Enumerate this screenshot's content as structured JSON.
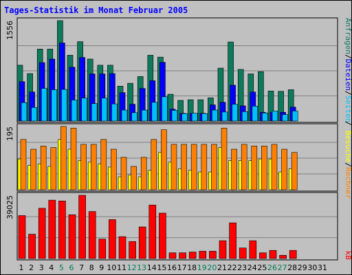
{
  "title": "Tages-Statistik im Monat Februar 2005",
  "colors": {
    "background": "#c0c0c0",
    "panel": "#c0c0c0",
    "grid": "#808080",
    "hits": "#0e7a5c",
    "files": "#0000ff",
    "pages": "#00c0ff",
    "visits": "#ff8000",
    "sites": "#ffff00",
    "kbytes": "#ff0000",
    "weekend": "#007b55",
    "weekday": "#000000",
    "title": "#0000ff",
    "legend_separator": "#000000"
  },
  "legend": {
    "top": [
      {
        "text": "Anfragen",
        "color": "#0e7a5c"
      },
      {
        "text": "Dateien",
        "color": "#0000ff"
      },
      {
        "text": "Seiten",
        "color": "#00c0ff"
      }
    ],
    "middle": [
      {
        "text": "Besuche",
        "color": "#ffff00"
      },
      {
        "text": "Rechner",
        "color": "#ff8000"
      }
    ],
    "bottom": [
      {
        "text": "kB",
        "color": "#ff0000"
      }
    ],
    "separator": "/"
  },
  "chart_data": [
    {
      "type": "bar",
      "ymax_label": "1556",
      "ylim": [
        0,
        1556
      ],
      "categories": [
        "1",
        "2",
        "3",
        "4",
        "5",
        "6",
        "7",
        "8",
        "9",
        "10",
        "11",
        "12",
        "13",
        "14",
        "15",
        "16",
        "17",
        "18",
        "19",
        "20",
        "21",
        "22",
        "23",
        "24",
        "25",
        "26",
        "27",
        "28",
        "29",
        "30",
        "31"
      ],
      "weekend_days": [
        "5",
        "6",
        "12",
        "13",
        "19",
        "20",
        "26",
        "27"
      ],
      "series": [
        {
          "name": "Anfragen",
          "values": [
            865,
            735,
            1115,
            1115,
            1556,
            1020,
            1230,
            960,
            865,
            865,
            540,
            585,
            690,
            1020,
            990,
            415,
            320,
            330,
            330,
            360,
            820,
            1225,
            800,
            730,
            765,
            465,
            460,
            485,
            null,
            null,
            null
          ]
        },
        {
          "name": "Dateien",
          "values": [
            610,
            450,
            905,
            960,
            1210,
            835,
            985,
            730,
            730,
            735,
            440,
            260,
            505,
            625,
            910,
            185,
            120,
            120,
            120,
            250,
            290,
            555,
            235,
            450,
            135,
            135,
            135,
            215,
            null,
            null,
            null
          ]
        },
        {
          "name": "Seiten",
          "values": [
            285,
            210,
            505,
            485,
            490,
            325,
            355,
            270,
            355,
            265,
            170,
            130,
            170,
            290,
            375,
            165,
            115,
            120,
            115,
            170,
            140,
            260,
            145,
            230,
            125,
            155,
            100,
            155,
            null,
            null,
            null
          ]
        }
      ]
    },
    {
      "type": "bar",
      "ymax_label": "195",
      "ylim": [
        0,
        195
      ],
      "categories": [
        "1",
        "2",
        "3",
        "4",
        "5",
        "6",
        "7",
        "8",
        "9",
        "10",
        "11",
        "12",
        "13",
        "14",
        "15",
        "16",
        "17",
        "18",
        "19",
        "20",
        "21",
        "22",
        "23",
        "24",
        "25",
        "26",
        "27",
        "28",
        "29",
        "30",
        "31"
      ],
      "series": [
        {
          "name": "Rechner",
          "values": [
            155,
            125,
            135,
            130,
            195,
            190,
            140,
            140,
            155,
            125,
            100,
            72,
            100,
            155,
            185,
            140,
            140,
            140,
            140,
            140,
            190,
            125,
            140,
            135,
            135,
            140,
            125,
            115,
            null,
            null,
            null
          ]
        },
        {
          "name": "Besuche",
          "values": [
            95,
            75,
            80,
            72,
            155,
            125,
            90,
            85,
            80,
            70,
            40,
            45,
            40,
            60,
            115,
            85,
            65,
            60,
            55,
            55,
            130,
            90,
            90,
            90,
            95,
            95,
            55,
            65,
            null,
            null,
            null
          ]
        }
      ]
    },
    {
      "type": "bar",
      "ymax_label": "39025",
      "ylim": [
        0,
        39025
      ],
      "categories": [
        "1",
        "2",
        "3",
        "4",
        "5",
        "6",
        "7",
        "8",
        "9",
        "10",
        "11",
        "12",
        "13",
        "14",
        "15",
        "16",
        "17",
        "18",
        "19",
        "20",
        "21",
        "22",
        "23",
        "24",
        "25",
        "26",
        "27",
        "28",
        "29",
        "30",
        "31"
      ],
      "series": [
        {
          "name": "kB",
          "values": [
            26500,
            15000,
            31000,
            36000,
            35500,
            27000,
            39025,
            29000,
            12000,
            24000,
            13500,
            10500,
            19500,
            33000,
            28000,
            3500,
            3500,
            4000,
            4500,
            4500,
            11000,
            22000,
            6500,
            11000,
            3500,
            5000,
            2000,
            5000,
            null,
            null,
            null
          ]
        }
      ]
    }
  ]
}
